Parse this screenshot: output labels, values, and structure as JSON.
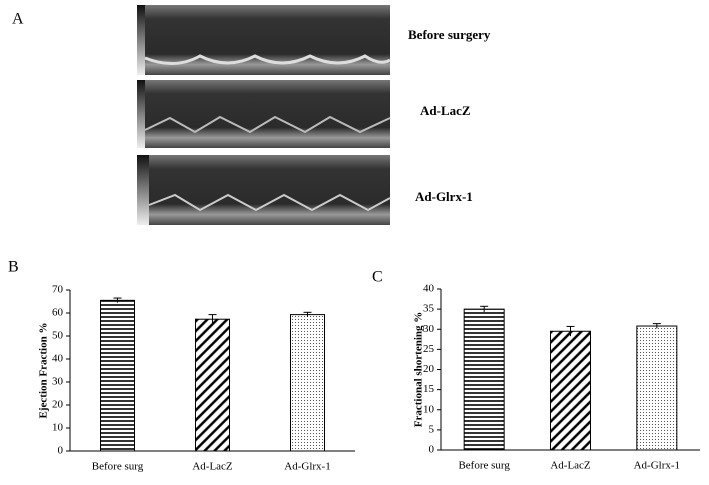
{
  "panel_a": {
    "label": "A",
    "images": [
      {
        "label": "Before surgery"
      },
      {
        "label": "Ad-LacZ"
      },
      {
        "label": "Ad-Glrx-1"
      }
    ]
  },
  "chart_data": [
    {
      "type": "bar",
      "panel_label": "B",
      "y_label": "Ejection Fraction %",
      "categories": [
        "Before surg",
        "Ad-LacZ",
        "Ad-Glrx-1"
      ],
      "values": [
        65.5,
        57.3,
        59.3
      ],
      "errors": [
        1,
        2,
        1
      ],
      "patterns": [
        "horizontal",
        "diagonal",
        "dotted"
      ],
      "ylim": [
        0,
        70
      ],
      "yticks": [
        0,
        10,
        20,
        30,
        40,
        50,
        60,
        70
      ]
    },
    {
      "type": "bar",
      "panel_label": "C",
      "y_label": "Fractional shortening %",
      "categories": [
        "Before surg",
        "Ad-LacZ",
        "Ad-Glrx-1"
      ],
      "values": [
        35,
        29.5,
        30.8
      ],
      "errors": [
        0.7,
        1.2,
        0.6
      ],
      "patterns": [
        "horizontal",
        "diagonal",
        "dotted"
      ],
      "ylim": [
        0,
        40
      ],
      "yticks": [
        0,
        5,
        10,
        15,
        20,
        25,
        30,
        35,
        40
      ]
    }
  ]
}
